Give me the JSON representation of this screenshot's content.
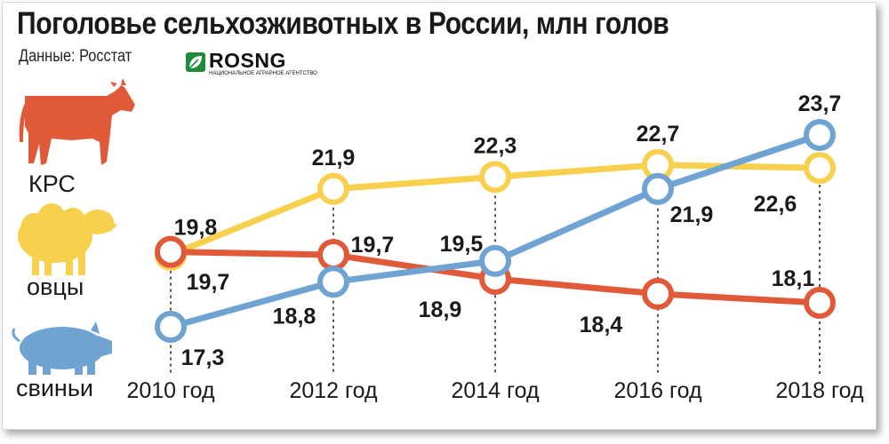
{
  "header": {
    "title": "Поголовье сельхозживотных в России, млн голов",
    "source": "Данные: Росстат",
    "logo_name": "ROSNG",
    "logo_sub": "НАЦИОНАЛЬНОЕ АГРАРНОЕ АГЕНТСТВО"
  },
  "colors": {
    "cattle": "#e05a3a",
    "sheep": "#f7d04e",
    "pigs": "#6ea3d2",
    "guide": "#555555"
  },
  "animals": [
    {
      "label": "КРС",
      "icon": "cow-icon"
    },
    {
      "label": "овцы",
      "icon": "sheep-icon"
    },
    {
      "label": "свиньи",
      "icon": "pig-icon"
    }
  ],
  "chart_data": {
    "type": "line",
    "title": "Поголовье сельхозживотных в России, млн голов",
    "categories": [
      "2010 год",
      "2012 год",
      "2014 год",
      "2016 год",
      "2018 год"
    ],
    "series": [
      {
        "name": "КРС",
        "color": "#e05a3a",
        "values": [
          19.8,
          19.7,
          18.9,
          18.4,
          18.1
        ],
        "labels": [
          "19,8",
          "19,7",
          "18,9",
          "18,4",
          "18,1"
        ]
      },
      {
        "name": "овцы",
        "color": "#f7d04e",
        "values": [
          19.7,
          21.9,
          22.3,
          22.7,
          22.6
        ],
        "labels": [
          "19,7",
          "21,9",
          "22,3",
          "22,7",
          "22,6"
        ]
      },
      {
        "name": "свиньи",
        "color": "#6ea3d2",
        "values": [
          17.3,
          18.8,
          19.5,
          21.9,
          23.7
        ],
        "labels": [
          "17,3",
          "18,8",
          "19,5",
          "21,9",
          "23,7"
        ]
      }
    ],
    "xlabel": "",
    "ylabel": "",
    "grid": false,
    "legend": "left (animal icons)"
  }
}
